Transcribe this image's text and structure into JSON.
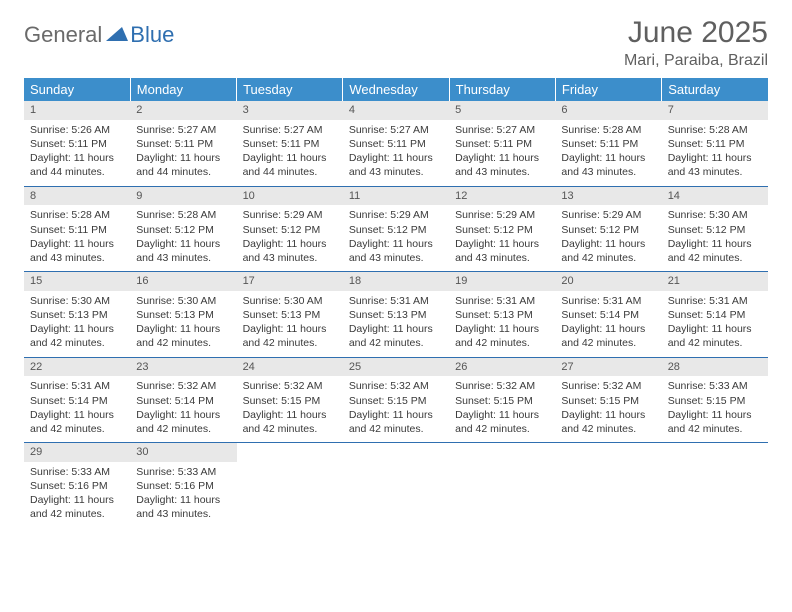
{
  "logo": {
    "general": "General",
    "blue": "Blue",
    "tri_color": "#2f6fb0"
  },
  "title": "June 2025",
  "location": "Mari, Paraiba, Brazil",
  "colors": {
    "header_bg": "#3c8ecb",
    "header_text": "#ffffff",
    "daynum_bg": "#e8e8e8",
    "row_divider": "#2f6fb0",
    "title_color": "#5f5f5f",
    "body_text": "#3a3a3a"
  },
  "day_names": [
    "Sunday",
    "Monday",
    "Tuesday",
    "Wednesday",
    "Thursday",
    "Friday",
    "Saturday"
  ],
  "days": [
    {
      "n": 1,
      "sr": "5:26 AM",
      "ss": "5:11 PM",
      "dl": "11 hours and 44 minutes."
    },
    {
      "n": 2,
      "sr": "5:27 AM",
      "ss": "5:11 PM",
      "dl": "11 hours and 44 minutes."
    },
    {
      "n": 3,
      "sr": "5:27 AM",
      "ss": "5:11 PM",
      "dl": "11 hours and 44 minutes."
    },
    {
      "n": 4,
      "sr": "5:27 AM",
      "ss": "5:11 PM",
      "dl": "11 hours and 43 minutes."
    },
    {
      "n": 5,
      "sr": "5:27 AM",
      "ss": "5:11 PM",
      "dl": "11 hours and 43 minutes."
    },
    {
      "n": 6,
      "sr": "5:28 AM",
      "ss": "5:11 PM",
      "dl": "11 hours and 43 minutes."
    },
    {
      "n": 7,
      "sr": "5:28 AM",
      "ss": "5:11 PM",
      "dl": "11 hours and 43 minutes."
    },
    {
      "n": 8,
      "sr": "5:28 AM",
      "ss": "5:11 PM",
      "dl": "11 hours and 43 minutes."
    },
    {
      "n": 9,
      "sr": "5:28 AM",
      "ss": "5:12 PM",
      "dl": "11 hours and 43 minutes."
    },
    {
      "n": 10,
      "sr": "5:29 AM",
      "ss": "5:12 PM",
      "dl": "11 hours and 43 minutes."
    },
    {
      "n": 11,
      "sr": "5:29 AM",
      "ss": "5:12 PM",
      "dl": "11 hours and 43 minutes."
    },
    {
      "n": 12,
      "sr": "5:29 AM",
      "ss": "5:12 PM",
      "dl": "11 hours and 43 minutes."
    },
    {
      "n": 13,
      "sr": "5:29 AM",
      "ss": "5:12 PM",
      "dl": "11 hours and 42 minutes."
    },
    {
      "n": 14,
      "sr": "5:30 AM",
      "ss": "5:12 PM",
      "dl": "11 hours and 42 minutes."
    },
    {
      "n": 15,
      "sr": "5:30 AM",
      "ss": "5:13 PM",
      "dl": "11 hours and 42 minutes."
    },
    {
      "n": 16,
      "sr": "5:30 AM",
      "ss": "5:13 PM",
      "dl": "11 hours and 42 minutes."
    },
    {
      "n": 17,
      "sr": "5:30 AM",
      "ss": "5:13 PM",
      "dl": "11 hours and 42 minutes."
    },
    {
      "n": 18,
      "sr": "5:31 AM",
      "ss": "5:13 PM",
      "dl": "11 hours and 42 minutes."
    },
    {
      "n": 19,
      "sr": "5:31 AM",
      "ss": "5:13 PM",
      "dl": "11 hours and 42 minutes."
    },
    {
      "n": 20,
      "sr": "5:31 AM",
      "ss": "5:14 PM",
      "dl": "11 hours and 42 minutes."
    },
    {
      "n": 21,
      "sr": "5:31 AM",
      "ss": "5:14 PM",
      "dl": "11 hours and 42 minutes."
    },
    {
      "n": 22,
      "sr": "5:31 AM",
      "ss": "5:14 PM",
      "dl": "11 hours and 42 minutes."
    },
    {
      "n": 23,
      "sr": "5:32 AM",
      "ss": "5:14 PM",
      "dl": "11 hours and 42 minutes."
    },
    {
      "n": 24,
      "sr": "5:32 AM",
      "ss": "5:15 PM",
      "dl": "11 hours and 42 minutes."
    },
    {
      "n": 25,
      "sr": "5:32 AM",
      "ss": "5:15 PM",
      "dl": "11 hours and 42 minutes."
    },
    {
      "n": 26,
      "sr": "5:32 AM",
      "ss": "5:15 PM",
      "dl": "11 hours and 42 minutes."
    },
    {
      "n": 27,
      "sr": "5:32 AM",
      "ss": "5:15 PM",
      "dl": "11 hours and 42 minutes."
    },
    {
      "n": 28,
      "sr": "5:33 AM",
      "ss": "5:15 PM",
      "dl": "11 hours and 42 minutes."
    },
    {
      "n": 29,
      "sr": "5:33 AM",
      "ss": "5:16 PM",
      "dl": "11 hours and 42 minutes."
    },
    {
      "n": 30,
      "sr": "5:33 AM",
      "ss": "5:16 PM",
      "dl": "11 hours and 43 minutes."
    }
  ],
  "labels": {
    "sunrise": "Sunrise:",
    "sunset": "Sunset:",
    "daylight": "Daylight:"
  },
  "grid": {
    "first_weekday": 0,
    "rows": 5,
    "cols": 7
  }
}
